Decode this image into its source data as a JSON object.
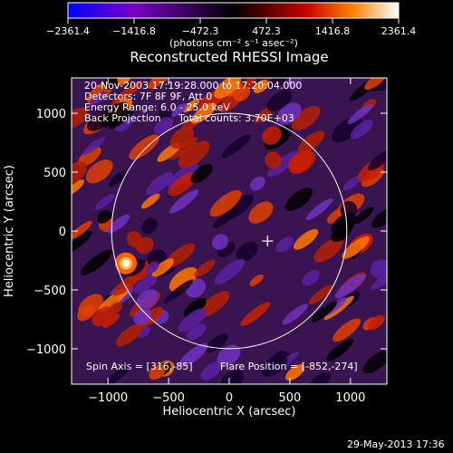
{
  "chart_data": {
    "type": "heatmap",
    "title": "Reconstructed RHESSI Image",
    "xlabel": "Heliocentric X (arcsec)",
    "ylabel": "Heliocentric Y (arcsec)",
    "xlim": [
      -1300,
      1300
    ],
    "ylim": [
      -1300,
      1300
    ],
    "x_ticks": [
      -1000,
      -500,
      0,
      500,
      1000
    ],
    "y_ticks": [
      -1000,
      -500,
      0,
      500,
      1000
    ],
    "x_tick_labels": [
      "−1000",
      "−500",
      "0",
      "500",
      "1000"
    ],
    "y_tick_labels": [
      "−1000",
      "−500",
      "0",
      "500",
      "1000"
    ],
    "colorbar": {
      "range": [
        -2361.4,
        2361.4
      ],
      "ticks": [
        -2361.4,
        -1416.8,
        -472.3,
        472.3,
        1416.8,
        2361.4
      ],
      "tick_labels": [
        "−2361.4",
        "−1416.8",
        "−472.3",
        "472.3",
        "1416.8",
        "2361.4"
      ],
      "units_label": "(photons cm⁻² s⁻¹ asec⁻²)",
      "colormap": [
        "#0000ff",
        "#7a00c8",
        "#000000",
        "#c80000",
        "#ff8000",
        "#ffffff"
      ]
    },
    "solar_limb_radius_arcsec": 970,
    "sun_center_marker": [
      316,
      -85
    ],
    "bright_source": [
      -852,
      -274
    ],
    "grid": false
  },
  "annotations": {
    "time_range": "20-Nov-2003 17:19:28.000 to 17:20:04.000",
    "detectors": "Detectors: 7F 8F 9F, Att 0",
    "energy_range": "Energy Range: 6.0 - 25.0 keV",
    "method": "Back Projection",
    "total_counts": "Total counts: 3.70E+03",
    "spin_axis": "Spin Axis = [316,-85]",
    "flare_position": "Flare Position = [-852,-274]"
  },
  "footer": {
    "timestamp": "29-May-2013 17:36"
  }
}
